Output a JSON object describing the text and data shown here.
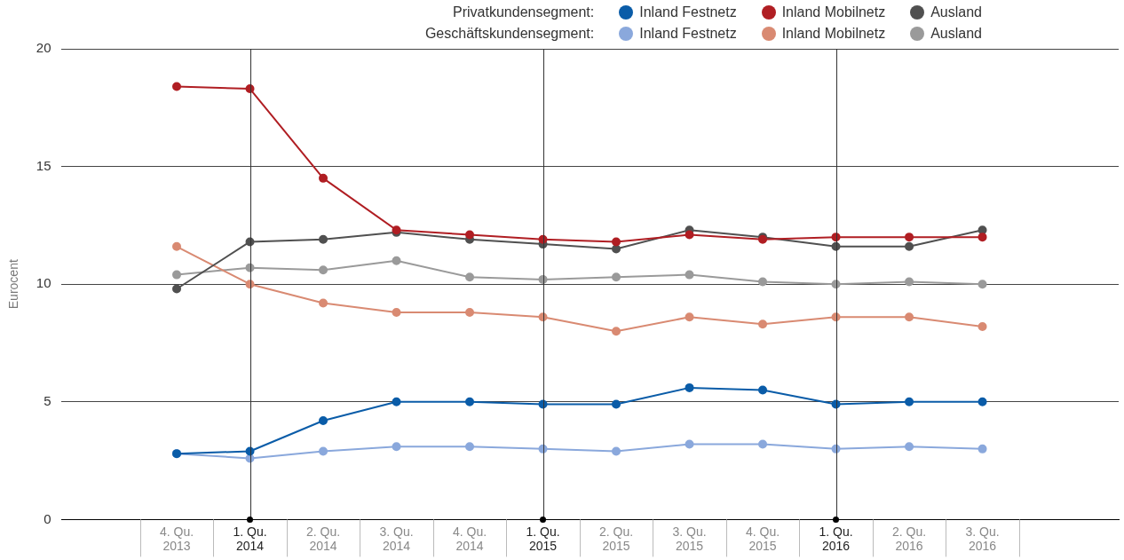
{
  "chart_data": {
    "type": "line",
    "ylabel": "Eurocent",
    "categories": [
      "4. Qu. 2013",
      "1. Qu. 2014",
      "2. Qu. 2014",
      "3. Qu. 2014",
      "4. Qu. 2014",
      "1. Qu. 2015",
      "2. Qu. 2015",
      "3. Qu. 2015",
      "4. Qu. 2015",
      "1. Qu. 2016",
      "2. Qu. 2016",
      "3. Qu. 2016"
    ],
    "series": [
      {
        "name": "Inland Festnetz",
        "color": "#0a5ca8",
        "values": [
          2.8,
          2.9,
          4.2,
          5.0,
          5.0,
          4.9,
          4.9,
          5.6,
          5.5,
          4.9,
          5.0,
          5.0
        ]
      },
      {
        "name": "Inland Mobilnetz",
        "color": "#b01e23",
        "values": [
          18.4,
          18.3,
          14.5,
          12.3,
          12.1,
          11.9,
          11.8,
          12.1,
          11.9,
          12.0,
          12.0,
          12.0
        ]
      },
      {
        "name": "Ausland",
        "color": "#505050",
        "values": [
          9.8,
          11.8,
          11.9,
          12.2,
          11.9,
          11.7,
          11.5,
          12.3,
          12.0,
          11.6,
          11.6,
          12.3
        ]
      },
      {
        "name": "Inland Festnetz",
        "color": "#8aa8dc",
        "values": [
          2.8,
          2.6,
          2.9,
          3.1,
          3.1,
          3.0,
          2.9,
          3.2,
          3.2,
          3.0,
          3.1,
          3.0
        ]
      },
      {
        "name": "Inland Mobilnetz",
        "color": "#d98a72",
        "values": [
          11.6,
          10.0,
          9.2,
          8.8,
          8.8,
          8.6,
          8.0,
          8.6,
          8.3,
          8.6,
          8.6,
          8.2
        ]
      },
      {
        "name": "Ausland",
        "color": "#9a9a9a",
        "values": [
          10.4,
          10.7,
          10.6,
          11.0,
          10.3,
          10.2,
          10.3,
          10.4,
          10.1,
          10.0,
          10.1,
          10.0
        ]
      }
    ],
    "annotations": [
      "Privatkundensegment:",
      "Geschäftskundensegment:"
    ],
    "ylim": [
      0,
      20
    ],
    "yticks": [
      0,
      5,
      10,
      15,
      20
    ],
    "grid": "y",
    "legend": "top right",
    "marker": "circle",
    "line_style": "solid",
    "ref_lines": [
      {
        "axis": "x",
        "value": "1. Qu. 2014",
        "color": "#333333"
      },
      {
        "axis": "x",
        "value": "1. Qu. 2015",
        "color": "#333333"
      },
      {
        "axis": "x",
        "value": "1. Qu. 2016",
        "color": "#333333"
      }
    ]
  }
}
